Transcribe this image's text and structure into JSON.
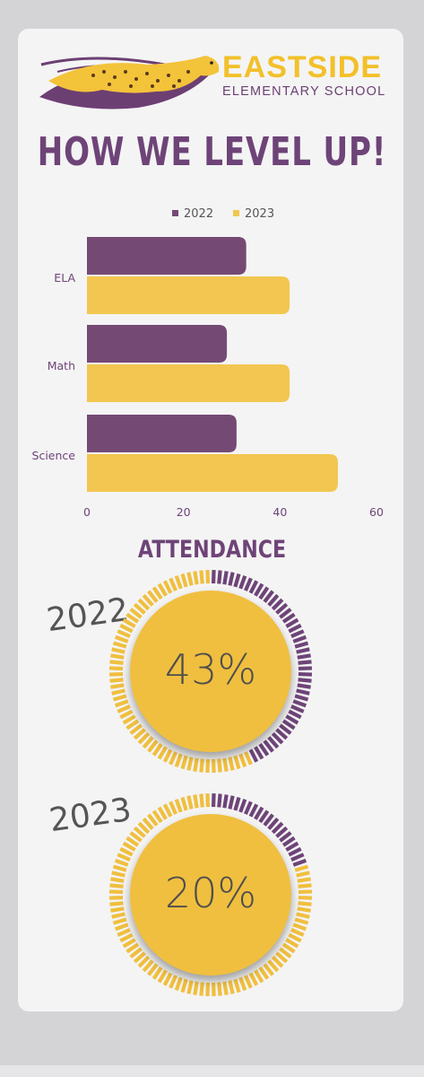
{
  "header": {
    "school_name": "EASTSIDE",
    "school_subtitle": "ELEMENTARY SCHOOL",
    "logo_icon": "cheetah-logo"
  },
  "headline": "HOW WE LEVEL UP!",
  "colors": {
    "purple": "#6e4478",
    "gold": "#f0bf3f",
    "bar_gold": "#f2c650",
    "bar_purple": "#744a74"
  },
  "chart_data": [
    {
      "type": "bar",
      "orientation": "horizontal",
      "categories": [
        "ELA",
        "Math",
        "Science"
      ],
      "series": [
        {
          "name": "2022",
          "values": [
            33,
            29,
            31
          ]
        },
        {
          "name": "2023",
          "values": [
            42,
            42,
            52
          ]
        }
      ],
      "xlim": [
        0,
        60
      ],
      "xticks": [
        "0",
        "20",
        "40",
        "60"
      ],
      "legend": "top-center",
      "grid": false
    },
    {
      "type": "pie",
      "title": "ATTENDANCE",
      "charts": [
        {
          "label": "2022",
          "value_text": "43%",
          "value": 43
        },
        {
          "label": "2023",
          "value_text": "20%",
          "value": 20
        }
      ]
    }
  ]
}
